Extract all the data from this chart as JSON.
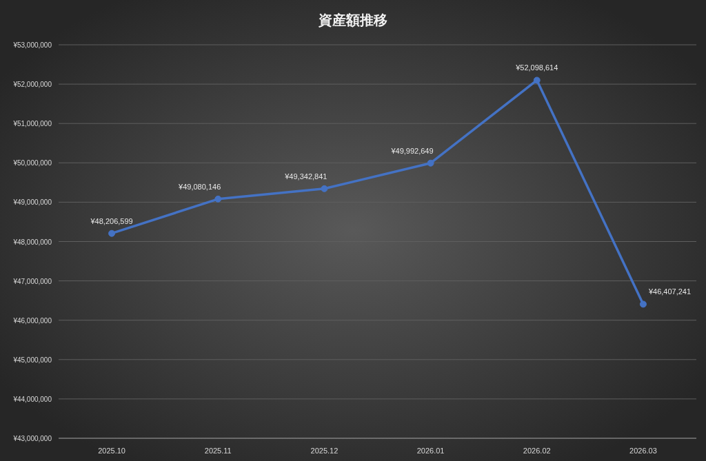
{
  "chart_data": {
    "type": "line",
    "title": "資産額推移",
    "categories": [
      "2025.10",
      "2025.11",
      "2025.12",
      "2026.01",
      "2026.02",
      "2026.03"
    ],
    "series": [
      {
        "color": "#4472c4",
        "values": [
          48206599,
          49080146,
          49342841,
          49992649,
          52098614,
          46407241
        ],
        "value_labels": [
          "¥48,206,599",
          "¥49,080,146",
          "¥49,342,841",
          "¥49,992,649",
          "¥52,098,614",
          "¥46,407,241"
        ]
      }
    ],
    "ylim": [
      43000000,
      53000000
    ],
    "yticks": [
      {
        "value": 43000000,
        "label": "¥43,000,000"
      },
      {
        "value": 44000000,
        "label": "¥44,000,000"
      },
      {
        "value": 45000000,
        "label": "¥45,000,000"
      },
      {
        "value": 46000000,
        "label": "¥46,000,000"
      },
      {
        "value": 47000000,
        "label": "¥47,000,000"
      },
      {
        "value": 48000000,
        "label": "¥48,000,000"
      },
      {
        "value": 49000000,
        "label": "¥49,000,000"
      },
      {
        "value": 50000000,
        "label": "¥50,000,000"
      },
      {
        "value": 51000000,
        "label": "¥51,000,000"
      },
      {
        "value": 52000000,
        "label": "¥52,000,000"
      },
      {
        "value": 53000000,
        "label": "¥53,000,000"
      }
    ],
    "grid": "y",
    "marker": "circle",
    "line_style": "solid"
  }
}
